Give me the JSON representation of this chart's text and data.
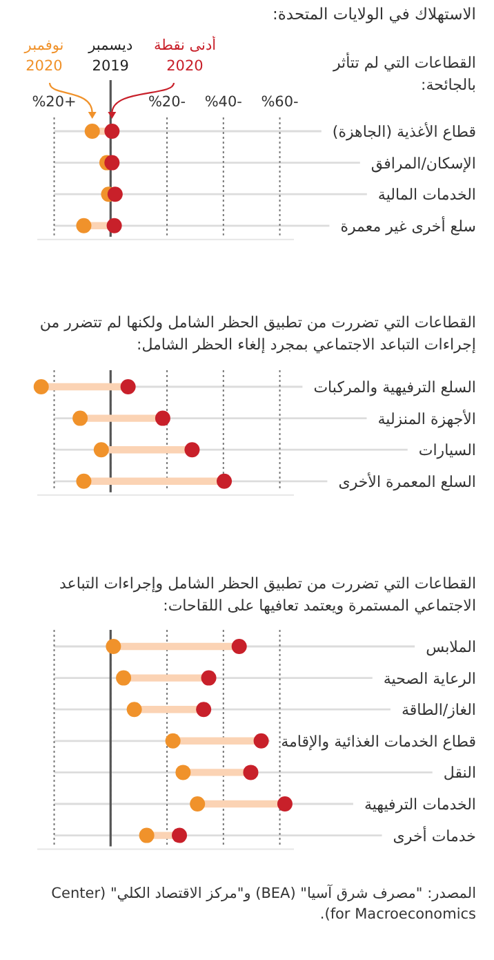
{
  "chart_data": [
    {
      "type": "scatter",
      "title": "الاستهلاك في الولايات المتحدة:",
      "subtitle": "القطاعات التي لم تتأثر بالجائحة:",
      "orientation": "horizontal",
      "categories": [
        "قطاع الأغذية (الجاهزة)",
        "الإسكان/المرافق",
        "الخدمات المالية",
        "سلع أخرى غير معمرة"
      ],
      "xlim": [
        26,
        -65
      ],
      "xticks": [
        {
          "value": 20,
          "label": "%20+"
        },
        {
          "value": 0,
          "label": null
        },
        {
          "value": -20,
          "label": "%20-"
        },
        {
          "value": -40,
          "label": "%40-"
        },
        {
          "value": -60,
          "label": "%60-"
        }
      ],
      "grid": true,
      "legend": "top",
      "ref_lines": [
        {
          "axis": "x",
          "value": 0,
          "label": "ديسمبر 2019",
          "color": "#555555"
        }
      ],
      "series": [
        {
          "name": "نوفمبر 2020",
          "color": "#f0922b",
          "values": [
            6.5,
            1.3,
            0.7,
            9.5
          ]
        },
        {
          "name": "أدنى نقطة 2020",
          "color": "#c8202a",
          "values": [
            -0.5,
            -0.5,
            -1.6,
            -1.3
          ]
        }
      ]
    },
    {
      "type": "scatter",
      "subtitle": "القطاعات التي تضررت من تطبيق الحظر الشامل ولكنها لم تتضرر من إجراءات التباعد الاجتماعي بمجرد إلغاء الحظر الشامل:",
      "orientation": "horizontal",
      "categories": [
        "السلع الترفيهية والمركبات",
        "الأجهزة المنزلية",
        "السيارات",
        "السلع المعمرة الأخرى"
      ],
      "xlim": [
        26,
        -65
      ],
      "xticks": [
        {
          "value": 20,
          "label": null
        },
        {
          "value": 0,
          "label": null
        },
        {
          "value": -20,
          "label": null
        },
        {
          "value": -40,
          "label": null
        },
        {
          "value": -60,
          "label": null
        }
      ],
      "grid": true,
      "tick_labels": "y",
      "ref_lines": [
        {
          "axis": "x",
          "value": 0,
          "color": "#555555"
        }
      ],
      "series": [
        {
          "color": "#f0922b",
          "values": [
            24.6,
            10.8,
            3.3,
            9.5
          ]
        },
        {
          "color": "#c8202a",
          "values": [
            -6.2,
            -18.5,
            -28.9,
            -40.3
          ]
        }
      ]
    },
    {
      "type": "scatter",
      "subtitle": "القطاعات التي تضررت من تطبيق الحظر الشامل وإجراءات التباعد الاجتماعي المستمرة ويعتمد تعافيها على اللقاحات:",
      "orientation": "horizontal",
      "categories": [
        "الملابس",
        "الرعاية الصحية",
        "الغاز/الطاقة",
        "قطاع الخدمات الغذائية والإقامة",
        "النقل",
        "الخدمات الترفيهية",
        "خدمات أخرى"
      ],
      "xlim": [
        26,
        -65
      ],
      "xticks": [
        {
          "value": 20,
          "label": null
        },
        {
          "value": 0,
          "label": null
        },
        {
          "value": -20,
          "label": null
        },
        {
          "value": -40,
          "label": null
        },
        {
          "value": -60,
          "label": null
        }
      ],
      "grid": true,
      "tick_labels": "y",
      "ref_lines": [
        {
          "axis": "x",
          "value": 0,
          "color": "#555555"
        }
      ],
      "annotations": [
        "المصدر: \"مصرف شرق آسيا\" (BEA) و\"مركز الاقتصاد الكلي\" (Center for Macroeconomics)."
      ],
      "series": [
        {
          "color": "#f0922b",
          "values": [
            -1.0,
            -4.6,
            -8.4,
            -22.1,
            -25.7,
            -30.8,
            -12.8
          ]
        },
        {
          "color": "#c8202a",
          "values": [
            -45.6,
            -34.8,
            -33.0,
            -53.4,
            -49.7,
            -61.8,
            -24.4
          ]
        }
      ]
    }
  ]
}
